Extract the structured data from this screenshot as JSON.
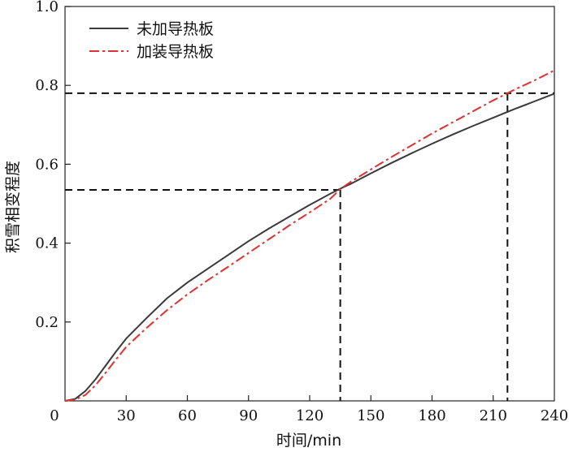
{
  "chart_data": {
    "type": "line",
    "xlabel": "时间/min",
    "ylabel": "积雪相变程度",
    "xlim": [
      0,
      240
    ],
    "ylim": [
      0,
      1.0
    ],
    "x_ticks": [
      0,
      30,
      60,
      90,
      120,
      150,
      180,
      210,
      240
    ],
    "x_tick_labels": [
      "0",
      "30",
      "60",
      "90",
      "120",
      "150",
      "180",
      "210",
      "240"
    ],
    "y_ticks": [
      0.2,
      0.4,
      0.6,
      0.8,
      1.0
    ],
    "y_tick_labels": [
      "0.2",
      "0.4",
      "0.6",
      "0.8",
      "1.0"
    ],
    "grid": false,
    "legend_position": "top-left",
    "series": [
      {
        "name": "未加导热板",
        "color": "#3a3a3a",
        "style": "solid",
        "x": [
          0,
          5,
          10,
          15,
          20,
          25,
          30,
          40,
          50,
          60,
          70,
          80,
          90,
          100,
          110,
          120,
          130,
          135,
          140,
          150,
          160,
          170,
          180,
          190,
          200,
          210,
          220,
          230,
          240
        ],
        "y": [
          0,
          0.005,
          0.025,
          0.055,
          0.09,
          0.125,
          0.158,
          0.21,
          0.26,
          0.3,
          0.335,
          0.37,
          0.405,
          0.437,
          0.467,
          0.497,
          0.525,
          0.538,
          0.55,
          0.577,
          0.603,
          0.628,
          0.652,
          0.675,
          0.697,
          0.718,
          0.739,
          0.759,
          0.779
        ]
      },
      {
        "name": "加装导热板",
        "color": "#e03030",
        "style": "dash-dot",
        "x": [
          0,
          5,
          10,
          15,
          20,
          25,
          30,
          40,
          50,
          60,
          70,
          80,
          90,
          100,
          110,
          120,
          130,
          135,
          140,
          150,
          160,
          170,
          180,
          190,
          200,
          210,
          217,
          220,
          230,
          240
        ],
        "y": [
          0,
          0.003,
          0.015,
          0.04,
          0.072,
          0.105,
          0.137,
          0.185,
          0.23,
          0.27,
          0.306,
          0.34,
          0.375,
          0.41,
          0.445,
          0.478,
          0.512,
          0.537,
          0.555,
          0.587,
          0.618,
          0.648,
          0.678,
          0.706,
          0.734,
          0.762,
          0.78,
          0.788,
          0.812,
          0.838
        ]
      }
    ],
    "reference_lines": [
      {
        "type": "horizontal",
        "y": 0.535,
        "x_to": 135
      },
      {
        "type": "vertical",
        "x": 135,
        "y_to": 0.535
      },
      {
        "type": "horizontal",
        "y": 0.78,
        "x_to": 240
      },
      {
        "type": "vertical",
        "x": 217,
        "y_to": 0.78
      }
    ]
  }
}
